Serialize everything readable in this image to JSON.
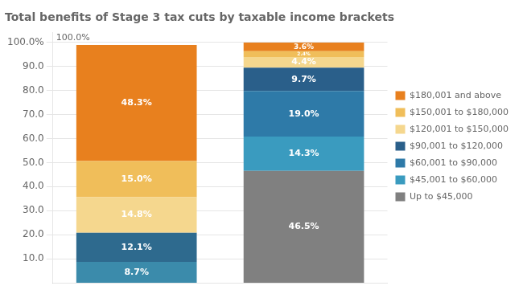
{
  "chart_data": {
    "type": "bar",
    "title": "Total benefits of Stage 3 tax cuts by taxable income brackets",
    "categories": [
      null,
      null
    ],
    "stacked": true,
    "series": [
      {
        "color": "#3b8bab",
        "values": [
          8.7,
          null
        ],
        "value_labels": [
          "8.7%",
          null
        ]
      },
      {
        "color": "#2e6a8e",
        "values": [
          12.1,
          null
        ],
        "value_labels": [
          "12.1%",
          null
        ]
      },
      {
        "color": "#f5d78e",
        "values": [
          14.8,
          null
        ],
        "value_labels": [
          "14.8%",
          null
        ]
      },
      {
        "color": "#f0be5a",
        "values": [
          15.0,
          null
        ],
        "value_labels": [
          "15.0%",
          null
        ]
      },
      {
        "color": "#e8801e",
        "values": [
          48.3,
          null
        ],
        "value_labels": [
          "48.3%",
          null
        ]
      },
      {
        "name": "Up to $45,000",
        "color": "#808080",
        "values": [
          null,
          46.5
        ],
        "value_labels": [
          null,
          "46.5%"
        ]
      },
      {
        "name": "$45,001 to $60,000",
        "color": "#3a9bbf",
        "values": [
          null,
          14.3
        ],
        "value_labels": [
          null,
          "14.3%"
        ]
      },
      {
        "name": "$60,001 to $90,000",
        "color": "#2e7aa8",
        "values": [
          null,
          19.0
        ],
        "value_labels": [
          null,
          "19.0%"
        ]
      },
      {
        "name": "$90,001 to $120,000",
        "color": "#2a5f8a",
        "values": [
          null,
          9.7
        ],
        "value_labels": [
          null,
          "9.7%"
        ]
      },
      {
        "name": "$120,001 to $150,000",
        "color": "#f5d78e",
        "values": [
          null,
          4.4
        ],
        "value_labels": [
          null,
          "4.4%"
        ]
      },
      {
        "name": "$150,001 to $180,000",
        "color": "#f0be5a",
        "values": [
          null,
          2.4
        ],
        "value_labels": [
          null,
          "2.4%"
        ]
      },
      {
        "name": "$180,001 and above",
        "color": "#e8801e",
        "values": [
          null,
          3.6
        ],
        "value_labels": [
          null,
          "3.6%"
        ]
      }
    ],
    "ylim": [
      0,
      104
    ],
    "yticks": [
      {
        "value": 10,
        "label": "10.0"
      },
      {
        "value": 20,
        "label": "20.0"
      },
      {
        "value": 30,
        "label": "30.0"
      },
      {
        "value": 40,
        "label": "40.0"
      },
      {
        "value": 50,
        "label": "50.0"
      },
      {
        "value": 60,
        "label": "60.0"
      },
      {
        "value": 70,
        "label": "70.0"
      },
      {
        "value": 80,
        "label": "80.0"
      },
      {
        "value": 90,
        "label": "90.0"
      },
      {
        "value": 100,
        "label": "100.0%"
      }
    ],
    "annotations": [
      {
        "text": "100.0%",
        "y": 102
      }
    ],
    "grid": true,
    "data_labels": true,
    "tick_labels": "y",
    "legend": "right"
  }
}
